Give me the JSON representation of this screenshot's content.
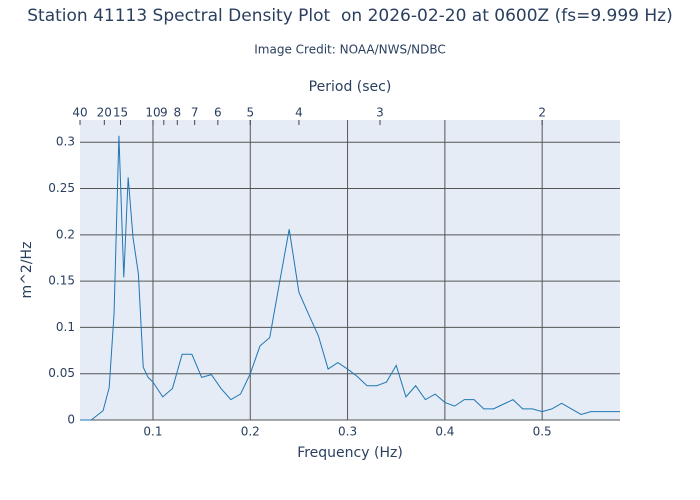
{
  "chart_data": {
    "type": "line",
    "title": "Station 41113 Spectral Density Plot  on 2026-02-20 at 0600Z (fs=9.999 Hz)",
    "subtitle": "Image Credit: NOAA/NWS/NDBC",
    "x_label": "Frequency (Hz)",
    "y_label": "m^2/Hz",
    "x2_label": "Period (sec)",
    "x": [
      0.025,
      0.0365,
      0.0487,
      0.055,
      0.06,
      0.065,
      0.07,
      0.0745,
      0.0795,
      0.085,
      0.09,
      0.095,
      0.1,
      0.11,
      0.12,
      0.13,
      0.14,
      0.15,
      0.16,
      0.17,
      0.18,
      0.19,
      0.2,
      0.21,
      0.22,
      0.23,
      0.24,
      0.25,
      0.26,
      0.27,
      0.28,
      0.29,
      0.3,
      0.31,
      0.32,
      0.33,
      0.34,
      0.35,
      0.36,
      0.37,
      0.38,
      0.39,
      0.4,
      0.41,
      0.42,
      0.43,
      0.44,
      0.45,
      0.46,
      0.47,
      0.48,
      0.49,
      0.5,
      0.51,
      0.52,
      0.54,
      0.55,
      0.58
    ],
    "values": [
      0,
      0,
      0.01,
      0.035,
      0.115,
      0.307,
      0.154,
      0.262,
      0.197,
      0.158,
      0.057,
      0.046,
      0.041,
      0.025,
      0.034,
      0.071,
      0.071,
      0.046,
      0.049,
      0.034,
      0.022,
      0.028,
      0.05,
      0.08,
      0.089,
      0.148,
      0.206,
      0.138,
      0.114,
      0.091,
      0.055,
      0.062,
      0.055,
      0.047,
      0.037,
      0.037,
      0.041,
      0.059,
      0.025,
      0.037,
      0.022,
      0.028,
      0.019,
      0.015,
      0.022,
      0.022,
      0.012,
      0.012,
      0.017,
      0.022,
      0.012,
      0.012,
      0.009,
      0.012,
      0.018,
      0.006,
      0.009,
      0.009
    ],
    "color": "#1f77b4",
    "xlim": [
      0.025,
      0.58
    ],
    "ylim": [
      0,
      0.324
    ],
    "xticks": [
      0.1,
      0.2,
      0.3,
      0.4,
      0.5
    ],
    "yticks": [
      0,
      0.05,
      0.1,
      0.15,
      0.2,
      0.25,
      0.3
    ],
    "x2ticks": [
      40,
      20,
      15,
      10,
      9,
      8,
      7,
      6,
      5,
      4,
      3,
      2
    ],
    "grid": true
  }
}
